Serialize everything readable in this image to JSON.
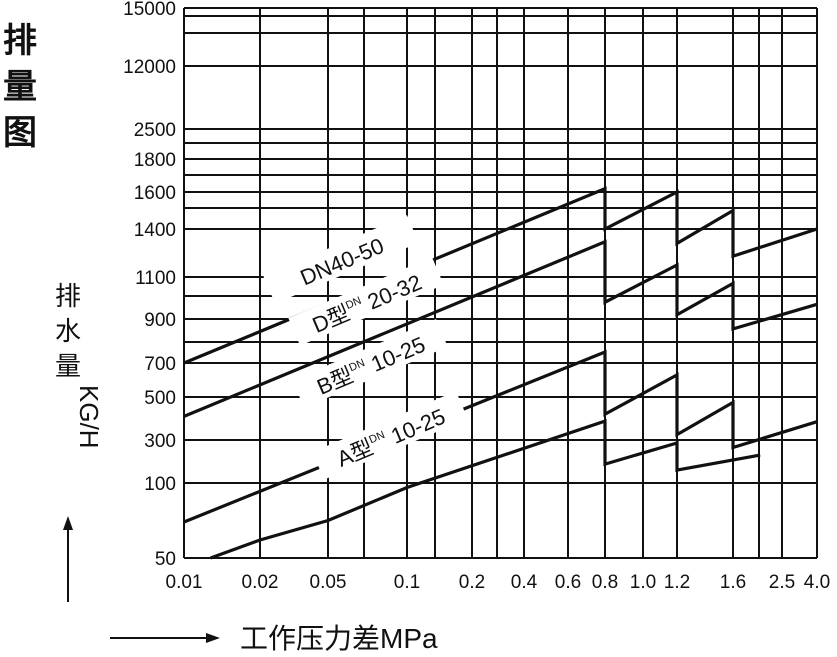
{
  "title": "排量图",
  "chart_data": {
    "type": "line",
    "title": "排量图",
    "xlabel": "工作压力差MPa",
    "ylabel_chars": [
      "排",
      "水",
      "量"
    ],
    "ylabel_unit": "KG/H",
    "x_ticks": [
      0.01,
      0.02,
      0.05,
      0.1,
      0.2,
      0.4,
      0.6,
      0.8,
      1.0,
      1.2,
      1.6,
      2.5,
      4.0
    ],
    "x_tick_labels": [
      "0.01",
      "0.02",
      "0.05",
      "0.1",
      "0.2",
      "0.4",
      "0.6",
      "0.8",
      "1.0",
      "1.2",
      "1.6",
      "2.5",
      "4.0"
    ],
    "y_ticks": [
      50,
      100,
      300,
      500,
      700,
      900,
      1100,
      1400,
      1600,
      1800,
      2500,
      12000,
      15000
    ],
    "y_tick_labels": [
      "50",
      "100",
      "300",
      "500",
      "700",
      "900",
      "1100",
      "1400",
      "1600",
      "1800",
      "2500",
      "12000",
      "15000"
    ],
    "xlim": [
      0.01,
      4.0
    ],
    "ylim": [
      50,
      15000
    ],
    "grid": true,
    "line_color": "#111111",
    "series": [
      {
        "name": "DN40-50",
        "label_main": "DN40-50",
        "label_sup": "",
        "label_tail": "",
        "points": [
          [
            0.01,
            700
          ],
          [
            0.8,
            1620
          ],
          [
            0.8,
            1400
          ],
          [
            1.2,
            1600
          ],
          [
            1.2,
            1310
          ],
          [
            1.6,
            1500
          ],
          [
            1.6,
            1230
          ],
          [
            4.0,
            1400
          ]
        ]
      },
      {
        "name": "D型DN 20-32",
        "label_main": "D型",
        "label_sup": "DN",
        "label_tail": "20-32",
        "points": [
          [
            0.01,
            410
          ],
          [
            0.8,
            1320
          ],
          [
            0.8,
            980
          ],
          [
            1.2,
            1175
          ],
          [
            1.2,
            920
          ],
          [
            1.6,
            1070
          ],
          [
            1.6,
            855
          ],
          [
            4.0,
            970
          ]
        ]
      },
      {
        "name": "B型DN 10-25",
        "label_main": "B型",
        "label_sup": "DN",
        "label_tail": "10-25",
        "points": [
          [
            0.01,
            74
          ],
          [
            0.8,
            750
          ],
          [
            0.8,
            420
          ],
          [
            1.2,
            630
          ],
          [
            1.2,
            325
          ],
          [
            1.6,
            475
          ],
          [
            1.6,
            265
          ],
          [
            4.0,
            385
          ]
        ]
      },
      {
        "name": "A型DN 10-25",
        "label_main": "A型",
        "label_sup": "DN",
        "label_tail": "10-25",
        "points": [
          [
            0.0135,
            50
          ],
          [
            0.02,
            62
          ],
          [
            0.05,
            75
          ],
          [
            0.1,
            97
          ],
          [
            0.8,
            388
          ],
          [
            0.8,
            188
          ],
          [
            1.2,
            286
          ],
          [
            1.2,
            160
          ],
          [
            2.1,
            230
          ]
        ]
      }
    ]
  }
}
